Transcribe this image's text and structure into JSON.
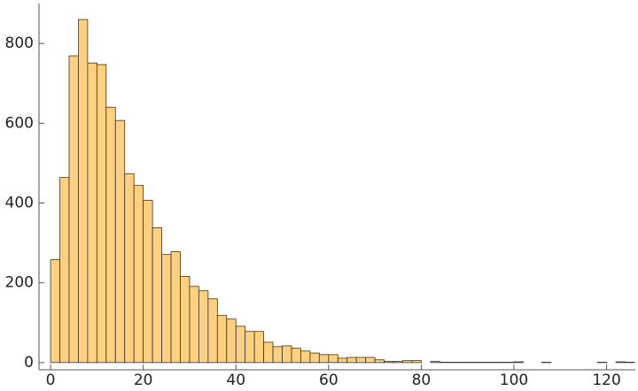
{
  "chart_data": {
    "type": "histogram",
    "bins": [
      0,
      2,
      4,
      6,
      8,
      10,
      12,
      14,
      16,
      18,
      20,
      22,
      24,
      26,
      28,
      30,
      32,
      34,
      36,
      38,
      40,
      42,
      44,
      46,
      48,
      50,
      52,
      54,
      56,
      58,
      60,
      62,
      64,
      66,
      68,
      70,
      72,
      74,
      76,
      78,
      80,
      82,
      84,
      86,
      88,
      90,
      92,
      94,
      96,
      98,
      100,
      102,
      104,
      106,
      108,
      110,
      112,
      114,
      116,
      118,
      120,
      122,
      124,
      126
    ],
    "values": [
      258,
      464,
      769,
      860,
      751,
      747,
      640,
      607,
      473,
      444,
      407,
      338,
      271,
      278,
      216,
      191,
      180,
      160,
      118,
      109,
      91,
      78,
      78,
      51,
      40,
      42,
      36,
      29,
      24,
      20,
      20,
      11,
      13,
      13,
      13,
      7,
      3,
      3,
      5,
      5,
      0,
      3,
      1,
      1,
      1,
      1,
      1,
      1,
      1,
      1,
      2,
      0,
      0,
      1,
      0,
      0,
      0,
      0,
      0,
      1,
      0,
      2,
      1
    ],
    "color": "#ffd07f",
    "xlim": [
      -2.5,
      126.2
    ],
    "ylim": [
      -18,
      900
    ],
    "xticks": [
      0,
      20,
      40,
      60,
      80,
      100,
      120
    ],
    "yticks": [
      0,
      200,
      400,
      600,
      800
    ]
  }
}
